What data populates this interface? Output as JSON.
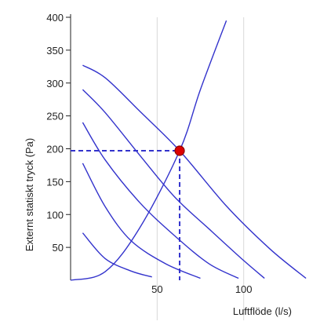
{
  "colors": {
    "curve": "#3333cc",
    "grid": "#d8d8d8",
    "axis": "#222222",
    "marker_fill": "#dd0000",
    "marker_stroke": "#8a0000"
  },
  "chart_data": {
    "type": "line",
    "title": "",
    "xlabel": "Luftflöde (l/s)",
    "ylabel": "Externt statiskt tryck (Pa)",
    "xlim": [
      0,
      145
    ],
    "ylim": [
      0,
      400
    ],
    "x_ticks": [
      50,
      100
    ],
    "y_ticks": [
      50,
      100,
      150,
      200,
      250,
      300,
      350,
      400
    ],
    "grid": true,
    "fan_curves": [
      {
        "points": [
          [
            7,
            72
          ],
          [
            20,
            33
          ],
          [
            35,
            14
          ],
          [
            47,
            5
          ]
        ]
      },
      {
        "points": [
          [
            7,
            178
          ],
          [
            20,
            112
          ],
          [
            35,
            60
          ],
          [
            55,
            25
          ],
          [
            75,
            3
          ]
        ]
      },
      {
        "points": [
          [
            7,
            240
          ],
          [
            20,
            183
          ],
          [
            40,
            118
          ],
          [
            60,
            68
          ],
          [
            80,
            25
          ],
          [
            97,
            3
          ]
        ]
      },
      {
        "points": [
          [
            7,
            290
          ],
          [
            20,
            255
          ],
          [
            40,
            190
          ],
          [
            60,
            127
          ],
          [
            80,
            78
          ],
          [
            100,
            30
          ],
          [
            112,
            3
          ]
        ]
      },
      {
        "points": [
          [
            7,
            327
          ],
          [
            20,
            308
          ],
          [
            40,
            257
          ],
          [
            63,
            197
          ],
          [
            90,
            113
          ],
          [
            115,
            48
          ],
          [
            136,
            3
          ]
        ]
      }
    ],
    "system_curve": {
      "points": [
        [
          0,
          0
        ],
        [
          20,
          13
        ],
        [
          40,
          80
        ],
        [
          63,
          197
        ],
        [
          75,
          290
        ],
        [
          90,
          395
        ]
      ]
    },
    "operating_point": {
      "x": 63,
      "y": 197
    }
  }
}
